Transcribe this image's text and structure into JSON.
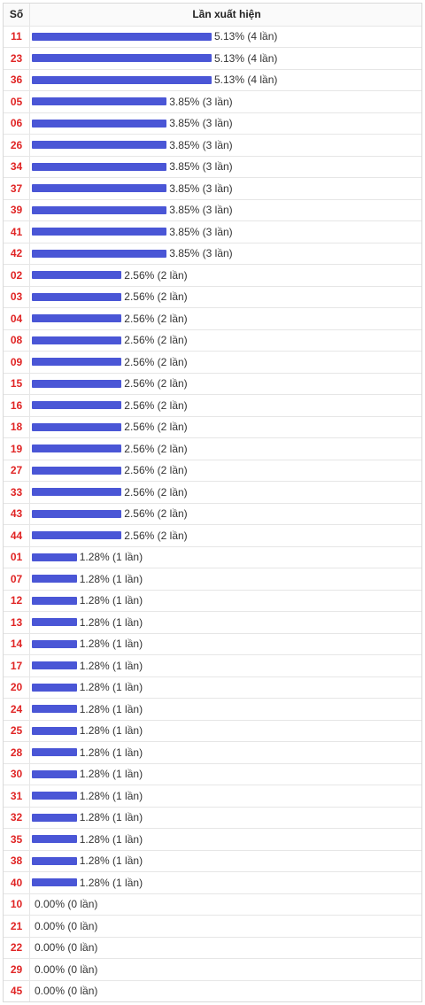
{
  "table": {
    "header_number": "Số",
    "header_frequency": "Lần xuất hiện"
  },
  "colors": {
    "bar": "#4a56d6",
    "number": "#e02424",
    "label": "#333333"
  },
  "chart_data": {
    "type": "bar",
    "orientation": "horizontal",
    "xlabel": "Lần xuất hiện",
    "ylabel": "Số",
    "max_percent": 5.13,
    "rows": [
      {
        "number": "11",
        "percent": 5.13,
        "label": "5.13% (4 lần)"
      },
      {
        "number": "23",
        "percent": 5.13,
        "label": "5.13% (4 lần)"
      },
      {
        "number": "36",
        "percent": 5.13,
        "label": "5.13% (4 lần)"
      },
      {
        "number": "05",
        "percent": 3.85,
        "label": "3.85% (3 lần)"
      },
      {
        "number": "06",
        "percent": 3.85,
        "label": "3.85% (3 lần)"
      },
      {
        "number": "26",
        "percent": 3.85,
        "label": "3.85% (3 lần)"
      },
      {
        "number": "34",
        "percent": 3.85,
        "label": "3.85% (3 lần)"
      },
      {
        "number": "37",
        "percent": 3.85,
        "label": "3.85% (3 lần)"
      },
      {
        "number": "39",
        "percent": 3.85,
        "label": "3.85% (3 lần)"
      },
      {
        "number": "41",
        "percent": 3.85,
        "label": "3.85% (3 lần)"
      },
      {
        "number": "42",
        "percent": 3.85,
        "label": "3.85% (3 lần)"
      },
      {
        "number": "02",
        "percent": 2.56,
        "label": "2.56% (2 lần)"
      },
      {
        "number": "03",
        "percent": 2.56,
        "label": "2.56% (2 lần)"
      },
      {
        "number": "04",
        "percent": 2.56,
        "label": "2.56% (2 lần)"
      },
      {
        "number": "08",
        "percent": 2.56,
        "label": "2.56% (2 lần)"
      },
      {
        "number": "09",
        "percent": 2.56,
        "label": "2.56% (2 lần)"
      },
      {
        "number": "15",
        "percent": 2.56,
        "label": "2.56% (2 lần)"
      },
      {
        "number": "16",
        "percent": 2.56,
        "label": "2.56% (2 lần)"
      },
      {
        "number": "18",
        "percent": 2.56,
        "label": "2.56% (2 lần)"
      },
      {
        "number": "19",
        "percent": 2.56,
        "label": "2.56% (2 lần)"
      },
      {
        "number": "27",
        "percent": 2.56,
        "label": "2.56% (2 lần)"
      },
      {
        "number": "33",
        "percent": 2.56,
        "label": "2.56% (2 lần)"
      },
      {
        "number": "43",
        "percent": 2.56,
        "label": "2.56% (2 lần)"
      },
      {
        "number": "44",
        "percent": 2.56,
        "label": "2.56% (2 lần)"
      },
      {
        "number": "01",
        "percent": 1.28,
        "label": "1.28% (1 lần)"
      },
      {
        "number": "07",
        "percent": 1.28,
        "label": "1.28% (1 lần)"
      },
      {
        "number": "12",
        "percent": 1.28,
        "label": "1.28% (1 lần)"
      },
      {
        "number": "13",
        "percent": 1.28,
        "label": "1.28% (1 lần)"
      },
      {
        "number": "14",
        "percent": 1.28,
        "label": "1.28% (1 lần)"
      },
      {
        "number": "17",
        "percent": 1.28,
        "label": "1.28% (1 lần)"
      },
      {
        "number": "20",
        "percent": 1.28,
        "label": "1.28% (1 lần)"
      },
      {
        "number": "24",
        "percent": 1.28,
        "label": "1.28% (1 lần)"
      },
      {
        "number": "25",
        "percent": 1.28,
        "label": "1.28% (1 lần)"
      },
      {
        "number": "28",
        "percent": 1.28,
        "label": "1.28% (1 lần)"
      },
      {
        "number": "30",
        "percent": 1.28,
        "label": "1.28% (1 lần)"
      },
      {
        "number": "31",
        "percent": 1.28,
        "label": "1.28% (1 lần)"
      },
      {
        "number": "32",
        "percent": 1.28,
        "label": "1.28% (1 lần)"
      },
      {
        "number": "35",
        "percent": 1.28,
        "label": "1.28% (1 lần)"
      },
      {
        "number": "38",
        "percent": 1.28,
        "label": "1.28% (1 lần)"
      },
      {
        "number": "40",
        "percent": 1.28,
        "label": "1.28% (1 lần)"
      },
      {
        "number": "10",
        "percent": 0,
        "label": "0.00% (0 lần)"
      },
      {
        "number": "21",
        "percent": 0,
        "label": "0.00% (0 lần)"
      },
      {
        "number": "22",
        "percent": 0,
        "label": "0.00% (0 lần)"
      },
      {
        "number": "29",
        "percent": 0,
        "label": "0.00% (0 lần)"
      },
      {
        "number": "45",
        "percent": 0,
        "label": "0.00% (0 lần)"
      }
    ]
  }
}
